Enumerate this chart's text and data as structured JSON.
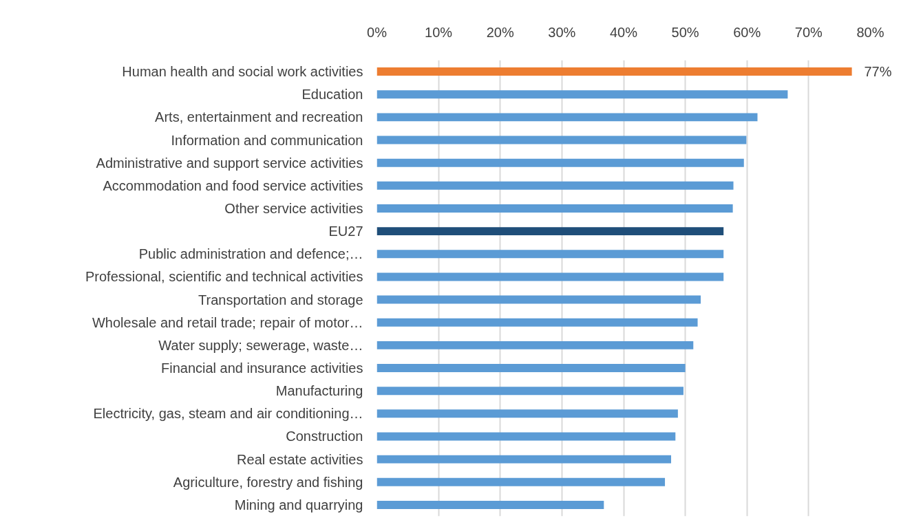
{
  "chart_data": {
    "type": "bar",
    "orientation": "horizontal",
    "categories": [
      "Human health and social work activities",
      "Education",
      "Arts, entertainment and recreation",
      "Information and communication",
      "Administrative and support service activities",
      "Accommodation and food service activities",
      "Other service activities",
      "EU27",
      "Public administration and defence;…",
      "Professional, scientific and technical activities",
      "Transportation and storage",
      "Wholesale and retail trade; repair of motor…",
      "Water supply; sewerage, waste…",
      "Financial and insurance activities",
      "Manufacturing",
      "Electricity, gas, steam and air conditioning…",
      "Construction",
      "Real estate activities",
      "Agriculture, forestry and fishing",
      "Mining and quarrying"
    ],
    "values": [
      77,
      66.6,
      61.7,
      59.9,
      59.5,
      57.8,
      57.7,
      56.2,
      56.2,
      56.2,
      52.5,
      52.0,
      51.3,
      50.0,
      49.7,
      48.8,
      48.4,
      47.7,
      46.7,
      36.8
    ],
    "colors": [
      "#ed7d31",
      "#5b9bd5",
      "#5b9bd5",
      "#5b9bd5",
      "#5b9bd5",
      "#5b9bd5",
      "#5b9bd5",
      "#1f4e79",
      "#5b9bd5",
      "#5b9bd5",
      "#5b9bd5",
      "#5b9bd5",
      "#5b9bd5",
      "#5b9bd5",
      "#5b9bd5",
      "#5b9bd5",
      "#5b9bd5",
      "#5b9bd5",
      "#5b9bd5",
      "#5b9bd5"
    ],
    "value_labels": [
      "77%",
      null,
      null,
      null,
      null,
      null,
      null,
      null,
      null,
      null,
      null,
      null,
      null,
      null,
      null,
      null,
      null,
      null,
      null,
      null
    ],
    "xlim": [
      0,
      80
    ],
    "xticks": [
      {
        "value": 0,
        "label": "0%"
      },
      {
        "value": 10,
        "label": "10%"
      },
      {
        "value": 20,
        "label": "20%"
      },
      {
        "value": 30,
        "label": "30%"
      },
      {
        "value": 40,
        "label": "40%"
      },
      {
        "value": 50,
        "label": "50%"
      },
      {
        "value": 60,
        "label": "60%"
      },
      {
        "value": 70,
        "label": "70%"
      },
      {
        "value": 80,
        "label": "80%"
      }
    ],
    "grid": "x"
  }
}
